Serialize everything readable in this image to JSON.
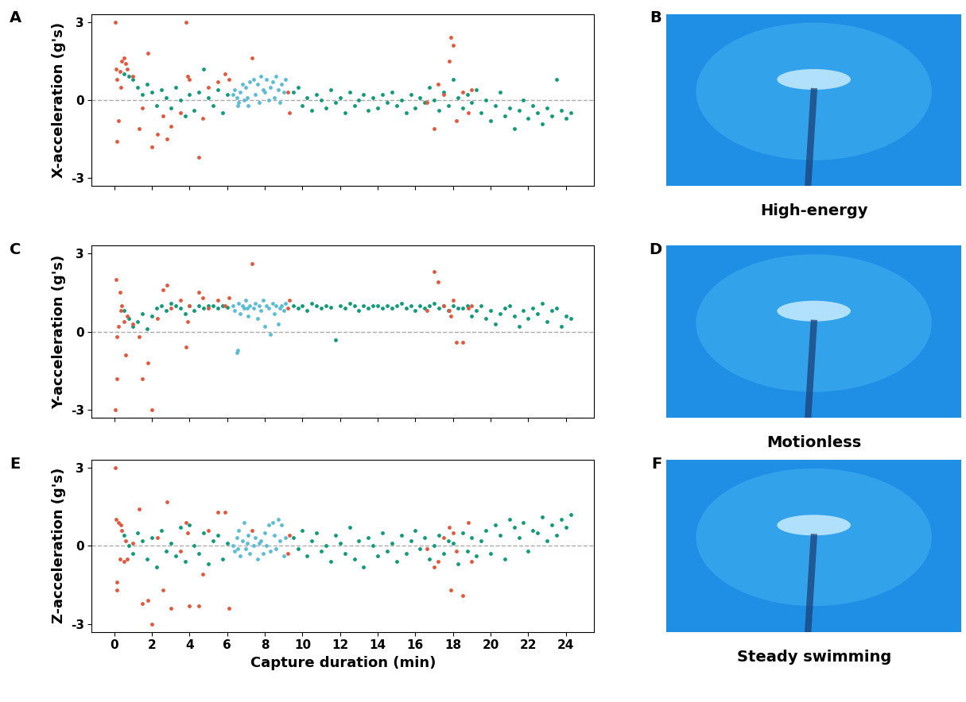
{
  "chart_data": [
    {
      "type": "scatter",
      "panel": "A",
      "y_label": "X-acceleration (g's)",
      "tick_labels": "y",
      "xlim": [
        -1.2,
        25.5
      ],
      "ylim": [
        -3.3,
        3.3
      ],
      "xticks": [
        0,
        2,
        4,
        6,
        8,
        10,
        12,
        14,
        16,
        18,
        20,
        22,
        24
      ],
      "yticks": [
        -3,
        0,
        3
      ],
      "hline": 0,
      "marker": "o",
      "series": [
        {
          "color": "#0f9b78",
          "x": [
            0.5,
            0.75,
            1.0,
            1.25,
            1.5,
            1.75,
            2.0,
            2.25,
            2.5,
            2.75,
            3.0,
            3.25,
            3.5,
            3.75,
            4.0,
            4.25,
            4.5,
            4.75,
            5.0,
            5.25,
            5.5,
            5.75,
            6.0,
            9.5,
            9.75,
            10.0,
            10.25,
            10.5,
            10.75,
            11.0,
            11.25,
            11.5,
            11.75,
            12.0,
            12.25,
            12.5,
            12.75,
            13.0,
            13.25,
            13.5,
            13.75,
            14.0,
            14.25,
            14.5,
            14.75,
            15.0,
            15.25,
            15.5,
            15.75,
            16.0,
            16.25,
            16.5,
            16.75,
            17.0,
            17.25,
            17.5,
            17.75,
            18.0,
            18.25,
            18.5,
            18.75,
            19.0,
            19.25,
            19.5,
            19.75,
            20.0,
            20.25,
            20.5,
            20.75,
            21.0,
            21.25,
            21.5,
            21.75,
            22.0,
            22.25,
            22.5,
            22.75,
            23.0,
            23.25,
            23.5,
            23.75,
            24.0,
            24.25
          ],
          "values": [
            1.0,
            0.9,
            0.8,
            0.5,
            0.2,
            0.6,
            0.3,
            -0.2,
            0.4,
            0.1,
            -0.3,
            0.5,
            0.0,
            -0.6,
            0.2,
            -0.4,
            0.3,
            1.2,
            0.1,
            -0.2,
            0.4,
            -0.5,
            0.2,
            0.3,
            0.5,
            -0.2,
            0.1,
            -0.4,
            0.2,
            0.0,
            -0.3,
            0.4,
            -0.1,
            0.1,
            -0.5,
            0.3,
            -0.2,
            0.0,
            0.2,
            -0.4,
            0.1,
            -0.3,
            0.2,
            -0.1,
            0.3,
            -0.2,
            0.0,
            -0.5,
            0.2,
            -0.3,
            0.1,
            -0.1,
            0.5,
            0.0,
            -0.4,
            0.3,
            -0.2,
            0.8,
            0.1,
            -0.3,
            0.2,
            -0.1,
            0.4,
            -0.5,
            0.0,
            -0.8,
            -0.2,
            0.3,
            -0.6,
            -0.3,
            -1.1,
            -0.4,
            0.0,
            -0.7,
            -0.2,
            -0.5,
            -0.9,
            -0.3,
            -0.6,
            0.8,
            -0.4,
            -0.7,
            -0.5
          ]
        },
        {
          "color": "#5bbcd6",
          "x": [
            6.3,
            6.4,
            6.5,
            6.6,
            6.7,
            6.8,
            6.9,
            7.0,
            7.1,
            7.2,
            7.4,
            7.5,
            7.6,
            7.7,
            7.8,
            7.9,
            8.0,
            8.1,
            8.2,
            8.3,
            8.4,
            8.5,
            8.6,
            8.7,
            8.8,
            8.9,
            9.0,
            9.1,
            6.55,
            7.05
          ],
          "values": [
            0.2,
            0.4,
            0.1,
            -0.1,
            0.3,
            0.6,
            0.0,
            0.5,
            -0.2,
            0.7,
            0.8,
            0.2,
            0.6,
            -0.1,
            0.9,
            0.4,
            0.3,
            0.8,
            0.0,
            0.5,
            0.7,
            0.1,
            0.9,
            0.4,
            -0.1,
            0.6,
            0.3,
            0.8,
            -0.2,
            0.1
          ]
        },
        {
          "color": "#e4573c",
          "x": [
            0.05,
            0.1,
            0.15,
            0.2,
            0.12,
            0.3,
            0.4,
            0.5,
            0.6,
            0.35,
            0.7,
            1.0,
            1.3,
            1.5,
            1.8,
            2.0,
            2.3,
            2.6,
            2.8,
            3.0,
            3.5,
            3.8,
            3.9,
            4.0,
            4.5,
            4.7,
            5.0,
            5.5,
            5.9,
            6.1,
            7.3,
            9.3,
            9.2,
            16.6,
            17.0,
            17.2,
            17.5,
            17.8,
            17.9,
            18.0,
            18.2,
            18.5,
            18.8,
            19.0
          ],
          "values": [
            3.0,
            1.2,
            0.8,
            -0.8,
            -1.6,
            1.1,
            1.5,
            1.6,
            1.4,
            0.5,
            1.2,
            0.9,
            -1.1,
            -0.3,
            1.8,
            -1.8,
            -1.3,
            -0.6,
            -1.5,
            -1.0,
            -0.5,
            3.0,
            0.9,
            0.8,
            -2.2,
            -0.7,
            0.5,
            0.7,
            1.0,
            0.8,
            1.6,
            -0.5,
            0.3,
            -0.1,
            -1.1,
            0.6,
            0.2,
            1.5,
            2.4,
            2.1,
            -0.8,
            0.3,
            -0.5,
            0.4
          ]
        }
      ]
    },
    {
      "type": "scatter",
      "panel": "C",
      "y_label": "Y-acceleration (g's)",
      "tick_labels": "y",
      "xlim": [
        -1.2,
        25.5
      ],
      "ylim": [
        -3.3,
        3.3
      ],
      "xticks": [
        0,
        2,
        4,
        6,
        8,
        10,
        12,
        14,
        16,
        18,
        20,
        22,
        24
      ],
      "yticks": [
        -3,
        0,
        3
      ],
      "hline": 0,
      "marker": "o",
      "series": [
        {
          "color": "#0f9b78",
          "x": [
            0.5,
            0.75,
            1.0,
            1.25,
            1.5,
            1.75,
            2.0,
            2.25,
            2.5,
            2.75,
            3.0,
            3.25,
            3.5,
            3.75,
            4.0,
            4.25,
            4.5,
            4.75,
            5.0,
            5.25,
            5.5,
            5.75,
            6.0,
            9.5,
            9.75,
            10.0,
            10.25,
            10.5,
            10.75,
            11.0,
            11.25,
            11.5,
            11.75,
            12.0,
            12.25,
            12.5,
            12.75,
            13.0,
            13.25,
            13.5,
            13.75,
            14.0,
            14.25,
            14.5,
            14.75,
            15.0,
            15.25,
            15.5,
            15.75,
            16.0,
            16.25,
            16.5,
            16.75,
            17.0,
            17.25,
            17.5,
            17.75,
            18.0,
            18.25,
            18.5,
            18.75,
            19.0,
            19.25,
            19.5,
            19.75,
            20.0,
            20.25,
            20.5,
            20.75,
            21.0,
            21.25,
            21.5,
            21.75,
            22.0,
            22.25,
            22.5,
            22.75,
            23.0,
            23.25,
            23.5,
            23.75,
            24.0,
            24.25
          ],
          "values": [
            0.8,
            0.5,
            0.2,
            0.4,
            0.7,
            0.1,
            0.6,
            0.9,
            1.0,
            0.8,
            1.1,
            1.0,
            0.9,
            0.7,
            1.0,
            0.8,
            1.0,
            0.9,
            1.0,
            1.0,
            0.9,
            1.0,
            0.95,
            1.0,
            0.9,
            1.0,
            0.8,
            1.1,
            1.0,
            0.9,
            1.0,
            0.95,
            -0.3,
            1.0,
            0.9,
            1.1,
            1.0,
            0.8,
            1.0,
            0.9,
            1.0,
            1.0,
            0.9,
            1.0,
            0.9,
            1.0,
            1.1,
            0.9,
            1.0,
            0.8,
            1.0,
            0.9,
            1.0,
            1.1,
            0.9,
            1.0,
            0.8,
            1.0,
            0.9,
            0.9,
            1.0,
            0.6,
            0.8,
            1.0,
            0.5,
            0.8,
            0.3,
            0.7,
            0.9,
            1.0,
            0.6,
            0.2,
            0.8,
            0.5,
            0.9,
            0.7,
            1.1,
            0.4,
            0.8,
            0.9,
            0.2,
            0.6,
            0.5
          ]
        },
        {
          "color": "#5bbcd6",
          "x": [
            6.3,
            6.4,
            6.5,
            6.6,
            6.7,
            6.8,
            6.9,
            7.0,
            7.1,
            7.2,
            7.4,
            7.5,
            7.6,
            7.7,
            7.8,
            7.9,
            8.0,
            8.1,
            8.2,
            8.3,
            8.4,
            8.5,
            8.6,
            8.7,
            8.8,
            8.9,
            9.0,
            9.1,
            6.55,
            7.05
          ],
          "values": [
            1.0,
            0.8,
            -0.8,
            1.1,
            0.7,
            1.0,
            0.9,
            1.2,
            0.6,
            1.0,
            0.9,
            1.1,
            0.5,
            1.0,
            0.8,
            1.2,
            0.2,
            1.0,
            0.9,
            -0.1,
            1.1,
            0.7,
            1.0,
            0.3,
            0.9,
            1.0,
            0.8,
            1.1,
            -0.7,
            0.9
          ]
        },
        {
          "color": "#e4573c",
          "x": [
            0.05,
            0.1,
            0.15,
            0.2,
            0.12,
            0.3,
            0.4,
            0.5,
            0.6,
            0.35,
            0.7,
            1.0,
            1.3,
            1.5,
            1.8,
            2.0,
            2.3,
            2.6,
            2.8,
            3.0,
            3.5,
            3.8,
            3.9,
            4.0,
            4.5,
            4.7,
            5.0,
            5.5,
            5.9,
            6.1,
            7.3,
            9.3,
            9.2,
            16.6,
            17.0,
            17.2,
            17.5,
            17.8,
            17.9,
            18.0,
            18.2,
            18.5,
            18.8,
            19.0
          ],
          "values": [
            -3.0,
            2.0,
            -1.8,
            0.2,
            -0.2,
            1.5,
            1.0,
            0.4,
            -0.9,
            0.8,
            0.6,
            0.3,
            -0.2,
            -1.8,
            -1.2,
            -3.0,
            0.5,
            1.6,
            1.8,
            0.9,
            1.2,
            -0.6,
            0.4,
            1.0,
            1.5,
            1.3,
            0.9,
            1.2,
            1.0,
            1.3,
            2.6,
            1.2,
            0.9,
            0.8,
            2.3,
            1.9,
            1.0,
            0.8,
            0.6,
            1.2,
            -0.4,
            -0.4,
            0.9,
            1.0
          ]
        }
      ]
    },
    {
      "type": "scatter",
      "panel": "E",
      "y_label": "Z-acceleration (g's)",
      "x_label": "Capture duration (min)",
      "xlim": [
        -1.2,
        25.5
      ],
      "ylim": [
        -3.3,
        3.3
      ],
      "xticks": [
        0,
        2,
        4,
        6,
        8,
        10,
        12,
        14,
        16,
        18,
        20,
        22,
        24
      ],
      "yticks": [
        -3,
        0,
        3
      ],
      "hline": 0,
      "marker": "o",
      "series": [
        {
          "color": "#0f9b78",
          "x": [
            0.5,
            0.75,
            1.0,
            1.25,
            1.5,
            1.75,
            2.0,
            2.25,
            2.5,
            2.75,
            3.0,
            3.25,
            3.5,
            3.75,
            4.0,
            4.25,
            4.5,
            4.75,
            5.0,
            5.25,
            5.5,
            5.75,
            6.0,
            9.5,
            9.75,
            10.0,
            10.25,
            10.5,
            10.75,
            11.0,
            11.25,
            11.5,
            11.75,
            12.0,
            12.25,
            12.5,
            12.75,
            13.0,
            13.25,
            13.5,
            13.75,
            14.0,
            14.25,
            14.5,
            14.75,
            15.0,
            15.25,
            15.5,
            15.75,
            16.0,
            16.25,
            16.5,
            16.75,
            17.0,
            17.25,
            17.5,
            17.75,
            18.0,
            18.25,
            18.5,
            18.75,
            19.0,
            19.25,
            19.5,
            19.75,
            20.0,
            20.25,
            20.5,
            20.75,
            21.0,
            21.25,
            21.5,
            21.75,
            22.0,
            22.25,
            22.5,
            22.75,
            23.0,
            23.25,
            23.5,
            23.75,
            24.0,
            24.25
          ],
          "values": [
            0.4,
            0.0,
            -0.3,
            0.5,
            0.2,
            -0.5,
            0.3,
            -0.8,
            0.6,
            -0.2,
            0.1,
            -0.4,
            0.7,
            -0.6,
            0.8,
            0.0,
            -0.3,
            0.5,
            -0.7,
            0.2,
            0.4,
            -0.5,
            0.1,
            0.3,
            -0.1,
            0.6,
            -0.4,
            0.2,
            0.5,
            -0.2,
            0.0,
            -0.6,
            0.4,
            0.1,
            -0.3,
            0.7,
            -0.5,
            0.2,
            -0.8,
            0.3,
            0.0,
            -0.4,
            0.5,
            -0.2,
            0.1,
            -0.6,
            0.4,
            -0.3,
            0.2,
            0.6,
            -0.1,
            0.3,
            -0.5,
            0.0,
            0.4,
            -0.3,
            0.2,
            0.1,
            -0.7,
            0.5,
            -0.2,
            0.3,
            -0.4,
            0.2,
            0.6,
            -0.3,
            0.8,
            0.4,
            -0.5,
            1.0,
            0.7,
            0.3,
            0.9,
            -0.2,
            0.6,
            0.5,
            1.1,
            0.2,
            0.8,
            0.4,
            1.0,
            0.7,
            1.2
          ]
        },
        {
          "color": "#5bbcd6",
          "x": [
            6.3,
            6.4,
            6.5,
            6.6,
            6.7,
            6.8,
            6.9,
            7.0,
            7.1,
            7.2,
            7.4,
            7.5,
            7.6,
            7.7,
            7.8,
            7.9,
            8.0,
            8.1,
            8.2,
            8.3,
            8.4,
            8.5,
            8.6,
            8.7,
            8.8,
            8.9,
            9.0,
            9.1,
            6.55,
            7.05
          ],
          "values": [
            0.0,
            -0.2,
            0.3,
            0.6,
            -0.4,
            0.2,
            0.9,
            -0.1,
            0.4,
            -0.3,
            0.0,
            0.3,
            -0.5,
            0.1,
            0.2,
            -0.3,
            0.5,
            0.0,
            0.8,
            -0.2,
            0.9,
            0.4,
            -0.1,
            1.0,
            0.2,
            0.8,
            -0.4,
            0.3,
            -0.1,
            0.1
          ]
        },
        {
          "color": "#e4573c",
          "x": [
            0.05,
            0.1,
            0.15,
            0.2,
            0.12,
            0.3,
            0.4,
            0.5,
            0.6,
            0.35,
            0.7,
            1.0,
            1.3,
            1.5,
            1.8,
            2.0,
            2.3,
            2.6,
            2.8,
            3.0,
            3.5,
            3.8,
            3.9,
            4.0,
            4.5,
            4.7,
            5.0,
            5.5,
            5.9,
            6.1,
            7.3,
            9.3,
            9.2,
            16.6,
            17.0,
            17.2,
            17.5,
            17.8,
            17.9,
            18.0,
            18.2,
            18.5,
            18.8,
            19.0
          ],
          "values": [
            3.0,
            1.0,
            -1.4,
            0.9,
            -1.7,
            -0.5,
            0.6,
            -0.6,
            0.2,
            0.8,
            -0.5,
            0.1,
            1.4,
            -2.2,
            -2.1,
            -3.0,
            0.3,
            -1.7,
            1.7,
            -2.4,
            -0.2,
            0.9,
            0.5,
            -2.3,
            -2.3,
            -1.1,
            0.6,
            1.3,
            1.3,
            -2.4,
            0.6,
            0.4,
            -0.3,
            -0.1,
            -0.8,
            -0.6,
            0.3,
            0.7,
            -1.7,
            0.5,
            -0.2,
            -1.9,
            0.9,
            -0.6
          ]
        }
      ]
    }
  ],
  "photos": [
    {
      "panel": "B",
      "caption": "High-energy"
    },
    {
      "panel": "D",
      "caption": "Motionless"
    },
    {
      "panel": "F",
      "caption": "Steady swimming"
    }
  ]
}
